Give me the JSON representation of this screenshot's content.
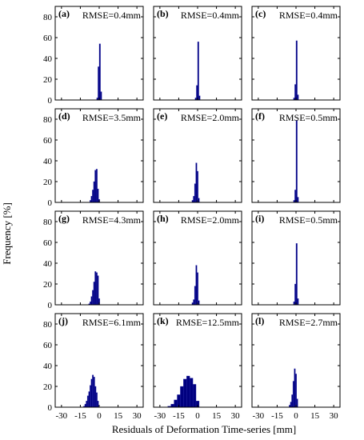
{
  "chart_data": {
    "type": "bar",
    "layout": "4x3 grid of histograms",
    "xlabel": "Residuals of Deformation Time-series [mm]",
    "ylabel": "Frequency [%]",
    "xlim": [
      -35,
      35
    ],
    "ylim": [
      0,
      90
    ],
    "xticks": [
      "-30",
      "-15",
      "0",
      "15",
      "30"
    ],
    "xtick_values": [
      -30,
      -15,
      0,
      15,
      30
    ],
    "yticks": [
      "0",
      "20",
      "40",
      "60",
      "80"
    ],
    "ytick_values": [
      0,
      20,
      40,
      60,
      80
    ],
    "bar_color": "#00007f",
    "panels": [
      {
        "label": "(a)",
        "rmse": "RMSE=0.4mm",
        "bins": [
          {
            "x": -1.5,
            "y": 2
          },
          {
            "x": -0.5,
            "y": 32
          },
          {
            "x": 0.5,
            "y": 54
          },
          {
            "x": 1.5,
            "y": 8
          }
        ]
      },
      {
        "label": "(b)",
        "rmse": "RMSE=0.4mm",
        "bins": [
          {
            "x": -1.5,
            "y": 2
          },
          {
            "x": -0.5,
            "y": 14
          },
          {
            "x": 0.5,
            "y": 56
          },
          {
            "x": 1.5,
            "y": 4
          }
        ]
      },
      {
        "label": "(c)",
        "rmse": "RMSE=0.4mm",
        "bins": [
          {
            "x": -1.5,
            "y": 2
          },
          {
            "x": -0.5,
            "y": 15
          },
          {
            "x": 0.5,
            "y": 57
          },
          {
            "x": 1.5,
            "y": 5
          }
        ]
      },
      {
        "label": "(d)",
        "rmse": "RMSE=3.5mm",
        "bins": [
          {
            "x": -7,
            "y": 2
          },
          {
            "x": -6,
            "y": 6
          },
          {
            "x": -5,
            "y": 12
          },
          {
            "x": -4,
            "y": 20
          },
          {
            "x": -3,
            "y": 31
          },
          {
            "x": -2,
            "y": 32
          },
          {
            "x": -1,
            "y": 13
          },
          {
            "x": 0,
            "y": 3
          }
        ]
      },
      {
        "label": "(e)",
        "rmse": "RMSE=2.0mm",
        "bins": [
          {
            "x": -4,
            "y": 2
          },
          {
            "x": -3,
            "y": 6
          },
          {
            "x": -2,
            "y": 18
          },
          {
            "x": -1,
            "y": 38
          },
          {
            "x": 0,
            "y": 30
          },
          {
            "x": 1,
            "y": 4
          }
        ]
      },
      {
        "label": "(f)",
        "rmse": "RMSE=0.5mm",
        "bins": [
          {
            "x": -1.5,
            "y": 2
          },
          {
            "x": -0.5,
            "y": 12
          },
          {
            "x": 0.5,
            "y": 79
          },
          {
            "x": 1.5,
            "y": 5
          }
        ]
      },
      {
        "label": "(g)",
        "rmse": "RMSE=4.3mm",
        "bins": [
          {
            "x": -8,
            "y": 1
          },
          {
            "x": -7,
            "y": 3
          },
          {
            "x": -6,
            "y": 8
          },
          {
            "x": -5,
            "y": 14
          },
          {
            "x": -4,
            "y": 22
          },
          {
            "x": -3,
            "y": 32
          },
          {
            "x": -2,
            "y": 31
          },
          {
            "x": -1,
            "y": 28
          },
          {
            "x": 0,
            "y": 6
          }
        ]
      },
      {
        "label": "(h)",
        "rmse": "RMSE=2.0mm",
        "bins": [
          {
            "x": -4,
            "y": 2
          },
          {
            "x": -3,
            "y": 5
          },
          {
            "x": -2,
            "y": 18
          },
          {
            "x": -1,
            "y": 38
          },
          {
            "x": 0,
            "y": 31
          },
          {
            "x": 1,
            "y": 4
          }
        ]
      },
      {
        "label": "(i)",
        "rmse": "RMSE=0.5mm",
        "bins": [
          {
            "x": -1.5,
            "y": 3
          },
          {
            "x": -0.5,
            "y": 20
          },
          {
            "x": 0.5,
            "y": 59
          },
          {
            "x": 1.5,
            "y": 6
          }
        ]
      },
      {
        "label": "(j)",
        "rmse": "RMSE=6.1mm",
        "bins": [
          {
            "x": -12,
            "y": 1
          },
          {
            "x": -11,
            "y": 3
          },
          {
            "x": -10,
            "y": 6
          },
          {
            "x": -9,
            "y": 11
          },
          {
            "x": -8,
            "y": 15
          },
          {
            "x": -7,
            "y": 21
          },
          {
            "x": -6,
            "y": 27
          },
          {
            "x": -5,
            "y": 31
          },
          {
            "x": -4,
            "y": 29
          },
          {
            "x": -3,
            "y": 20
          },
          {
            "x": -2,
            "y": 14
          },
          {
            "x": -1,
            "y": 6
          }
        ]
      },
      {
        "label": "(k)",
        "rmse": "RMSE=12.5mm",
        "bins": [
          {
            "x": -22.5,
            "y": 1
          },
          {
            "x": -20,
            "y": 3
          },
          {
            "x": -17.5,
            "y": 7
          },
          {
            "x": -15,
            "y": 12
          },
          {
            "x": -12.5,
            "y": 20
          },
          {
            "x": -10,
            "y": 27
          },
          {
            "x": -7.5,
            "y": 30
          },
          {
            "x": -5,
            "y": 28
          },
          {
            "x": -2.5,
            "y": 22
          },
          {
            "x": 0,
            "y": 6
          }
        ]
      },
      {
        "label": "(l)",
        "rmse": "RMSE=2.7mm",
        "bins": [
          {
            "x": -5,
            "y": 2
          },
          {
            "x": -4,
            "y": 5
          },
          {
            "x": -3,
            "y": 12
          },
          {
            "x": -2,
            "y": 25
          },
          {
            "x": -1,
            "y": 37
          },
          {
            "x": 0,
            "y": 32
          },
          {
            "x": 1,
            "y": 8
          }
        ]
      }
    ]
  }
}
